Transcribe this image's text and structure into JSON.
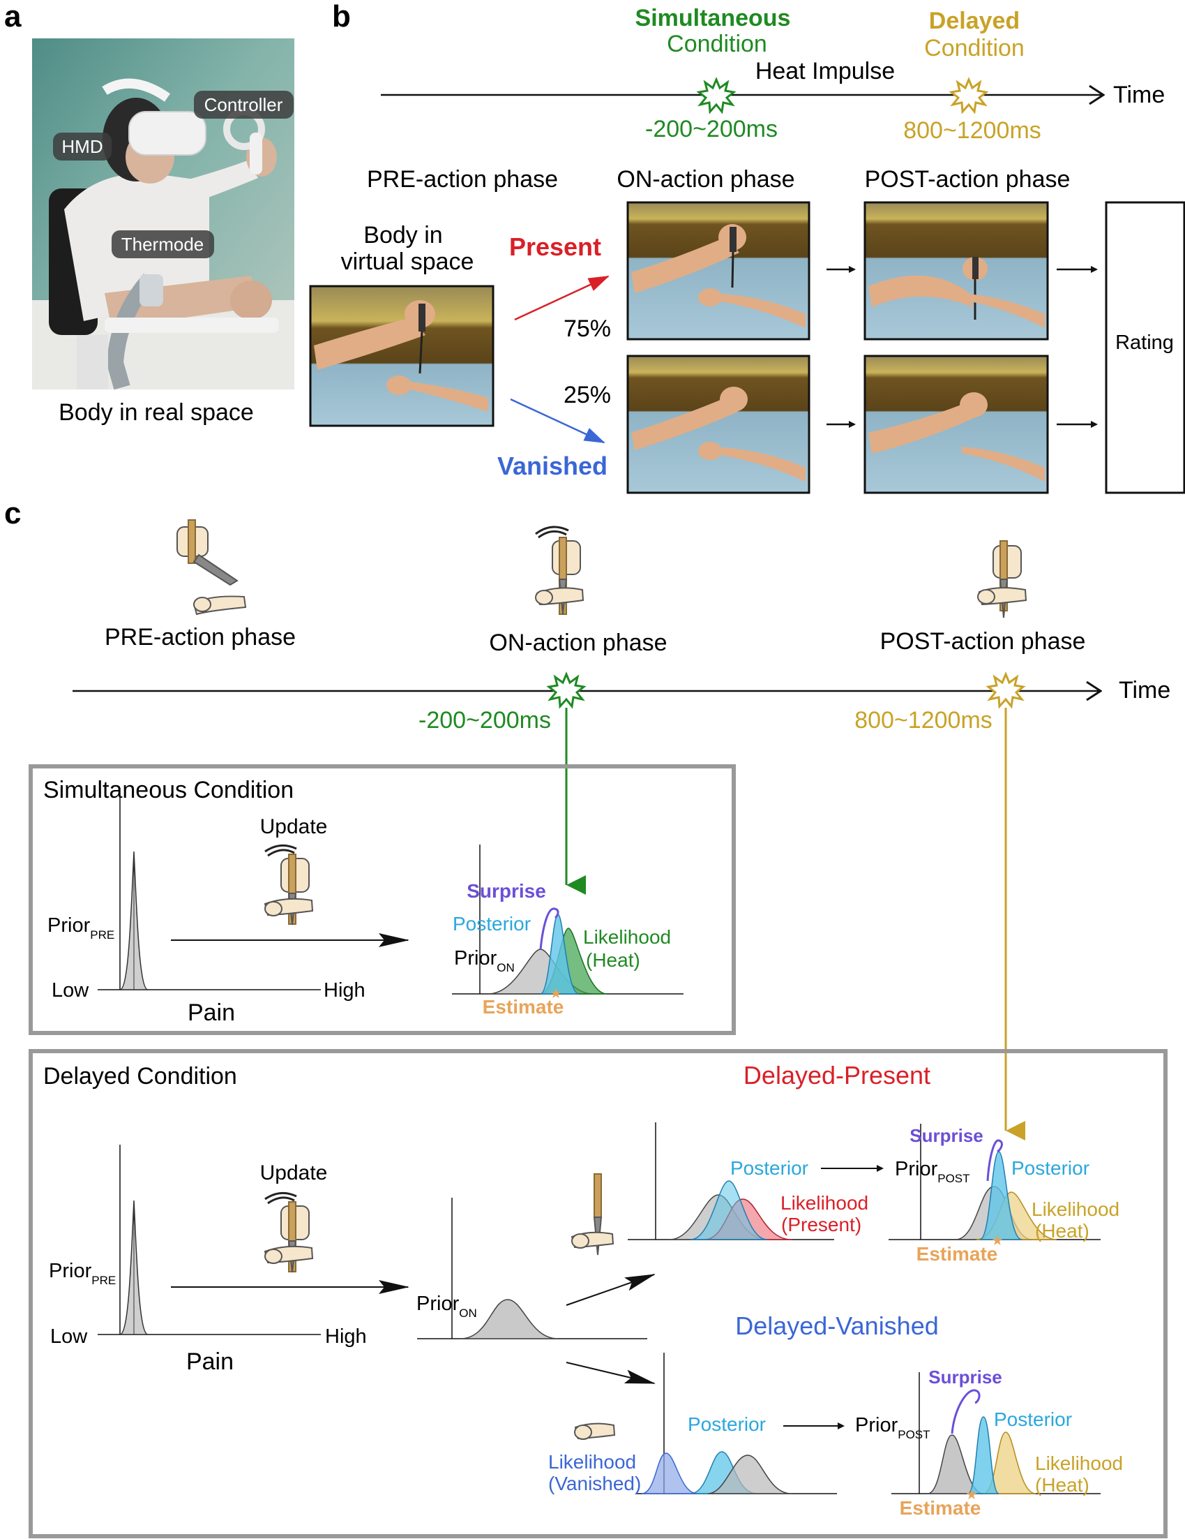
{
  "panels": {
    "a": "a",
    "b": "b",
    "c": "c"
  },
  "panel_a": {
    "labels": {
      "controller": "Controller",
      "hmd": "HMD",
      "thermode": "Thermode"
    },
    "caption": "Body in real space"
  },
  "panel_b": {
    "simultaneous": {
      "title": "Simultaneous",
      "subtitle": "Condition",
      "window": "-200~200ms"
    },
    "delayed": {
      "title": "Delayed",
      "subtitle": "Condition",
      "window": "800~1200ms"
    },
    "heat_impulse": "Heat Impulse",
    "time": "Time",
    "phases": {
      "pre": "PRE-action phase",
      "on": "ON-action phase",
      "post": "POST-action phase"
    },
    "body_virtual_line1": "Body in",
    "body_virtual_line2": "virtual space",
    "present": "Present",
    "vanished": "Vanished",
    "pct_present": "75%",
    "pct_vanished": "25%",
    "rating": "Rating"
  },
  "panel_c": {
    "phases": {
      "pre": "PRE-action phase",
      "on": "ON-action phase",
      "post": "POST-action phase"
    },
    "time": "Time",
    "sim_window": "-200~200ms",
    "del_window": "800~1200ms",
    "sim_box": {
      "title": "Simultaneous Condition",
      "update": "Update",
      "prior_pre": "Prior",
      "prior_pre_sub": "PRE",
      "low": "Low",
      "high": "High",
      "pain": "Pain",
      "surprise": "Surprise",
      "posterior": "Posterior",
      "likelihood_1": "Likelihood",
      "likelihood_2": "(Heat)",
      "prior_on": "Prior",
      "prior_on_sub": "ON",
      "estimate": "Estimate"
    },
    "del_box": {
      "title": "Delayed Condition",
      "update": "Update",
      "prior_pre": "Prior",
      "prior_pre_sub": "PRE",
      "low": "Low",
      "high": "High",
      "pain": "Pain",
      "prior_on": "Prior",
      "prior_on_sub": "ON",
      "delayed_present": "Delayed-Present",
      "delayed_vanished": "Delayed-Vanished",
      "dp_posterior": "Posterior",
      "dp_likelihood_1": "Likelihood",
      "dp_likelihood_2": "(Present)",
      "dp_prior_post": "Prior",
      "dp_prior_post_sub": "POST",
      "dp_surprise": "Surprise",
      "dp_posterior2": "Posterior",
      "dp_likelihood_heat_1": "Likelihood",
      "dp_likelihood_heat_2": "(Heat)",
      "dp_estimate": "Estimate",
      "dv_posterior": "Posterior",
      "dv_likelihood_1": "Likelihood",
      "dv_likelihood_2": "(Vanished)",
      "dv_prior_post": "Prior",
      "dv_prior_post_sub": "POST",
      "dv_surprise": "Surprise",
      "dv_posterior2": "Posterior",
      "dv_likelihood_heat_1": "Likelihood",
      "dv_likelihood_heat_2": "(Heat)",
      "dv_estimate": "Estimate"
    }
  },
  "colors": {
    "simultaneous": "#1f8a22",
    "delayed": "#c9a227",
    "present": "#d92027",
    "vanished": "#3a66d6",
    "posterior": "#2aa7dd",
    "surprise": "#6b4fd8",
    "estimate": "#e8a45a",
    "prior": "#b9b9b9"
  }
}
